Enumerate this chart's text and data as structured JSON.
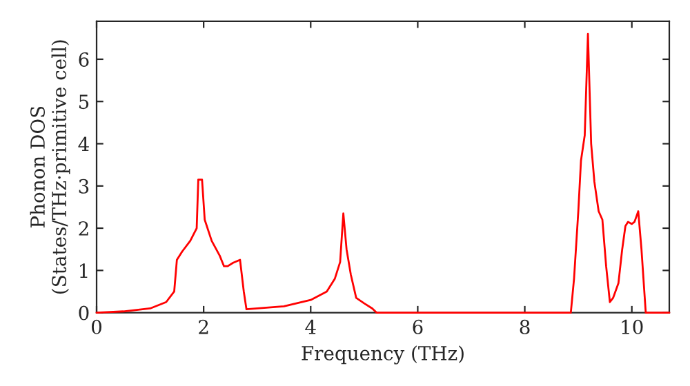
{
  "chart_data": {
    "type": "line",
    "xlabel": "Frequency (THz)",
    "ylabel": "Phonon DOS\n(States/THz·primitive cell)",
    "xlim": [
      0,
      10.7
    ],
    "ylim": [
      0,
      6.9
    ],
    "xticks": [
      0,
      2,
      4,
      6,
      8,
      10
    ],
    "yticks": [
      0,
      1,
      2,
      3,
      4,
      5,
      6
    ],
    "grid": false,
    "legend": false,
    "series": [
      {
        "color": "#ff0000",
        "x": [
          0,
          0.5,
          1.0,
          1.3,
          1.45,
          1.5,
          1.6,
          1.75,
          1.87,
          1.9,
          1.97,
          2.02,
          2.15,
          2.3,
          2.38,
          2.45,
          2.55,
          2.68,
          2.75,
          2.8,
          3.5,
          4.0,
          4.3,
          4.45,
          4.55,
          4.61,
          4.67,
          4.75,
          4.85,
          5.0,
          5.15,
          5.23,
          8.86,
          8.92,
          9.0,
          9.05,
          9.12,
          9.18,
          9.24,
          9.3,
          9.38,
          9.45,
          9.52,
          9.59,
          9.65,
          9.75,
          9.82,
          9.88,
          9.93,
          10.0,
          10.05,
          10.12,
          10.18,
          10.26,
          10.7
        ],
        "values": [
          0,
          0.03,
          0.1,
          0.25,
          0.5,
          1.25,
          1.45,
          1.7,
          2.0,
          3.15,
          3.15,
          2.2,
          1.7,
          1.35,
          1.1,
          1.1,
          1.18,
          1.25,
          0.5,
          0.08,
          0.15,
          0.3,
          0.5,
          0.8,
          1.2,
          2.35,
          1.5,
          0.9,
          0.35,
          0.22,
          0.1,
          0.0,
          0.0,
          0.8,
          2.4,
          3.6,
          4.2,
          6.6,
          4.0,
          3.1,
          2.4,
          2.2,
          1.1,
          0.25,
          0.35,
          0.7,
          1.5,
          2.05,
          2.15,
          2.1,
          2.15,
          2.4,
          1.5,
          0.0,
          0.0
        ]
      }
    ]
  }
}
